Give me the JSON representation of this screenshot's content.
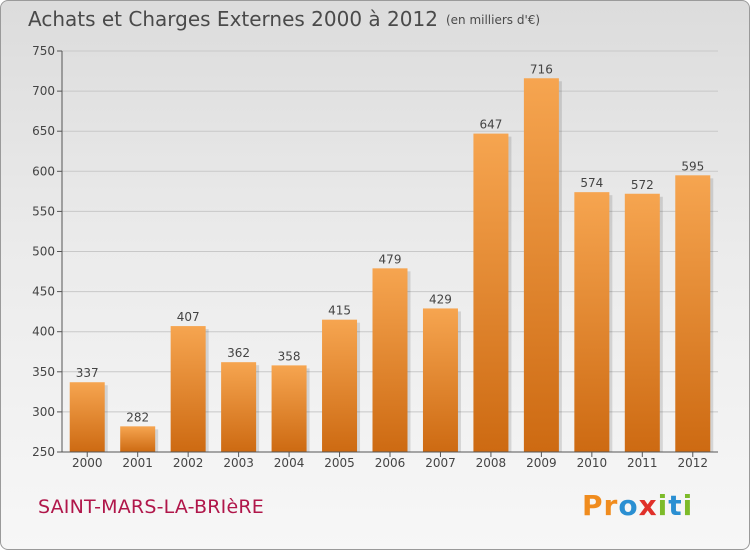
{
  "header": {
    "title": "Achats et Charges Externes 2000 à 2012",
    "subtitle": "(en milliers d'€)"
  },
  "footer": {
    "commune": "SAINT-MARS-LA-BRIèRE",
    "logo_letters": [
      "P",
      "r",
      "o",
      "x",
      "i",
      "t",
      "i"
    ],
    "logo_colors": [
      "#f08c1e",
      "#f08c1e",
      "#2a8fd2",
      "#e0302a",
      "#7dbb2a",
      "#2a8fd2",
      "#7dbb2a"
    ]
  },
  "colors": {
    "bar_light": "#f6a550",
    "bar_dark": "#cd6a12",
    "axis": "#555555",
    "grid": "#c8c8c8"
  },
  "chart_data": {
    "type": "bar",
    "title": "Achats et Charges Externes 2000 à 2012",
    "subtitle": "(en milliers d'€)",
    "categories": [
      "2000",
      "2001",
      "2002",
      "2003",
      "2004",
      "2005",
      "2006",
      "2007",
      "2008",
      "2009",
      "2010",
      "2011",
      "2012"
    ],
    "values": [
      337,
      282,
      407,
      362,
      358,
      415,
      479,
      429,
      647,
      716,
      574,
      572,
      595
    ],
    "ylim": [
      250,
      750
    ],
    "yticks": [
      250,
      300,
      350,
      400,
      450,
      500,
      550,
      600,
      650,
      700,
      750
    ],
    "grid": true,
    "xlabel": "",
    "ylabel": ""
  }
}
